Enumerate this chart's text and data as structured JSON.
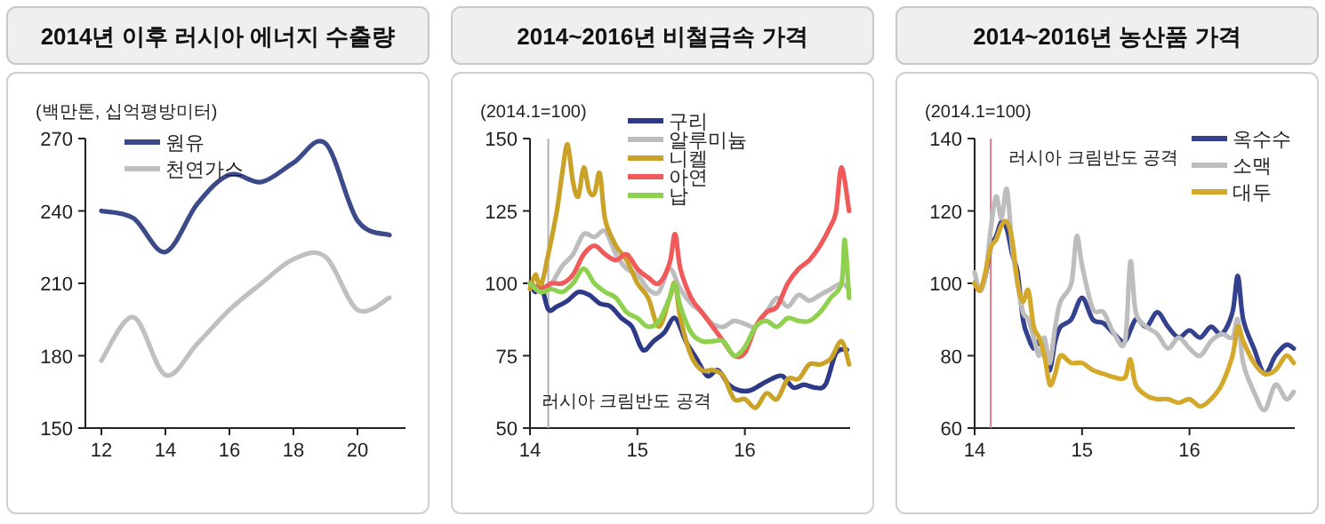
{
  "chart_data": [
    {
      "type": "line",
      "title": "2014년 이후 러시아 에너지 수출량",
      "ylabel": "(백만톤, 십억평방미터)",
      "x": [
        12,
        13,
        14,
        15,
        16,
        17,
        18,
        19,
        20,
        21
      ],
      "xlim": [
        11.5,
        21.5
      ],
      "ylim": [
        150,
        270
      ],
      "xticks": [
        12,
        14,
        16,
        18,
        20
      ],
      "yticks": [
        150,
        180,
        210,
        240,
        270
      ],
      "legend": "top left",
      "series": [
        {
          "name": "원유",
          "color": "#3d4a8a",
          "values": [
            240,
            237,
            223,
            243,
            255,
            252,
            260,
            268,
            236,
            230
          ]
        },
        {
          "name": "천연가스",
          "color": "#c0c0c0",
          "values": [
            178,
            196,
            172,
            185,
            199,
            210,
            220,
            221,
            199,
            204
          ]
        }
      ]
    },
    {
      "type": "line",
      "title": "2014~2016년 비철금속 가격",
      "ylabel": "(2014.1=100)",
      "xlim": [
        14,
        16.98
      ],
      "ylim": [
        50,
        150
      ],
      "xticks": [
        14,
        15,
        16
      ],
      "yticks": [
        50,
        75,
        100,
        125,
        150
      ],
      "legend": "top",
      "ref_lines": [
        {
          "axis": "x",
          "value": 14.17,
          "label": "러시아 크림반도 공격",
          "color": "#b0b0b0"
        }
      ],
      "series": [
        {
          "name": "구리",
          "color": "#2e3a87",
          "x": [
            14.0,
            14.05,
            14.1,
            14.17,
            14.25,
            14.35,
            14.45,
            14.55,
            14.65,
            14.75,
            14.85,
            14.95,
            15.05,
            15.15,
            15.25,
            15.35,
            15.45,
            15.55,
            15.65,
            15.75,
            15.85,
            15.95,
            16.05,
            16.15,
            16.25,
            16.35,
            16.45,
            16.55,
            16.65,
            16.75,
            16.85,
            16.95
          ],
          "values": [
            100,
            97,
            100,
            91,
            92,
            94,
            97,
            96,
            93,
            92,
            88,
            85,
            77,
            80,
            83,
            88,
            80,
            74,
            68,
            70,
            65,
            63,
            63,
            65,
            67,
            68,
            64,
            65,
            64,
            65,
            76,
            77
          ]
        },
        {
          "name": "알루미늄",
          "color": "#bdbdbd",
          "x": [
            14.0,
            14.1,
            14.2,
            14.3,
            14.4,
            14.5,
            14.6,
            14.7,
            14.8,
            14.9,
            15.0,
            15.1,
            15.2,
            15.3,
            15.4,
            15.5,
            15.6,
            15.7,
            15.8,
            15.9,
            16.0,
            16.1,
            16.2,
            16.3,
            16.4,
            16.5,
            16.6,
            16.7,
            16.8,
            16.9,
            16.97
          ],
          "values": [
            100,
            97,
            100,
            106,
            110,
            117,
            116,
            118,
            110,
            105,
            103,
            98,
            97,
            105,
            98,
            93,
            90,
            86,
            85,
            87,
            86,
            85,
            90,
            95,
            92,
            96,
            94,
            96,
            98,
            100,
            98
          ]
        },
        {
          "name": "니켈",
          "color": "#c9a227",
          "x": [
            14.0,
            14.05,
            14.1,
            14.17,
            14.25,
            14.3,
            14.35,
            14.4,
            14.45,
            14.5,
            14.55,
            14.6,
            14.65,
            14.7,
            14.8,
            14.9,
            15.0,
            15.1,
            15.2,
            15.3,
            15.35,
            15.4,
            15.5,
            15.6,
            15.7,
            15.8,
            15.9,
            16.0,
            16.1,
            16.2,
            16.3,
            16.4,
            16.5,
            16.6,
            16.7,
            16.8,
            16.9,
            16.97
          ],
          "values": [
            98,
            103,
            99,
            110,
            125,
            138,
            148,
            135,
            130,
            140,
            132,
            131,
            138,
            122,
            113,
            108,
            100,
            95,
            85,
            95,
            100,
            88,
            75,
            70,
            70,
            68,
            60,
            60,
            57,
            62,
            60,
            67,
            67,
            72,
            72,
            74,
            80,
            72
          ]
        },
        {
          "name": "아연",
          "color": "#f05a5a",
          "x": [
            14.0,
            14.1,
            14.2,
            14.3,
            14.4,
            14.5,
            14.6,
            14.7,
            14.8,
            14.9,
            15.0,
            15.1,
            15.2,
            15.3,
            15.35,
            15.4,
            15.5,
            15.6,
            15.7,
            15.8,
            15.9,
            16.0,
            16.1,
            16.2,
            16.3,
            16.4,
            16.5,
            16.6,
            16.7,
            16.8,
            16.85,
            16.9,
            16.97
          ],
          "values": [
            100,
            98,
            100,
            100,
            103,
            110,
            113,
            110,
            108,
            110,
            105,
            102,
            100,
            107,
            117,
            105,
            95,
            90,
            85,
            80,
            75,
            76,
            85,
            90,
            92,
            100,
            105,
            108,
            113,
            120,
            125,
            140,
            125
          ]
        },
        {
          "name": "납",
          "color": "#8fd14f",
          "x": [
            14.0,
            14.1,
            14.2,
            14.3,
            14.4,
            14.5,
            14.6,
            14.7,
            14.8,
            14.9,
            15.0,
            15.1,
            15.2,
            15.3,
            15.35,
            15.4,
            15.5,
            15.6,
            15.7,
            15.8,
            15.9,
            16.0,
            16.1,
            16.2,
            16.3,
            16.4,
            16.5,
            16.6,
            16.7,
            16.8,
            16.9,
            16.93,
            16.97
          ],
          "values": [
            100,
            97,
            98,
            97,
            100,
            105,
            100,
            97,
            95,
            90,
            88,
            85,
            87,
            95,
            100,
            92,
            83,
            80,
            80,
            80,
            75,
            78,
            85,
            87,
            85,
            88,
            87,
            87,
            90,
            95,
            100,
            115,
            95
          ]
        }
      ]
    },
    {
      "type": "line",
      "title": "2014~2016년 농산품 가격",
      "ylabel": "(2014.1=100)",
      "xlim": [
        14,
        16.98
      ],
      "ylim": [
        60,
        140
      ],
      "xticks": [
        14,
        15,
        16
      ],
      "yticks": [
        60,
        80,
        100,
        120,
        140
      ],
      "legend": "top right",
      "ref_lines": [
        {
          "axis": "x",
          "value": 14.15,
          "label": "러시아 크림반도 공격",
          "color": "#e07a8a"
        }
      ],
      "series": [
        {
          "name": "옥수수",
          "color": "#34418f",
          "x": [
            14.0,
            14.05,
            14.1,
            14.15,
            14.2,
            14.25,
            14.3,
            14.35,
            14.4,
            14.45,
            14.5,
            14.55,
            14.6,
            14.65,
            14.7,
            14.75,
            14.8,
            14.9,
            15.0,
            15.1,
            15.2,
            15.3,
            15.4,
            15.5,
            15.6,
            15.7,
            15.8,
            15.9,
            16.0,
            16.1,
            16.2,
            16.3,
            16.4,
            16.45,
            16.5,
            16.6,
            16.7,
            16.8,
            16.9,
            16.97
          ],
          "values": [
            100,
            98,
            102,
            110,
            113,
            117,
            115,
            108,
            103,
            90,
            85,
            82,
            84,
            80,
            76,
            84,
            88,
            90,
            96,
            90,
            89,
            86,
            84,
            90,
            88,
            92,
            88,
            85,
            87,
            85,
            88,
            86,
            92,
            102,
            90,
            82,
            75,
            80,
            83,
            82
          ]
        },
        {
          "name": "소맥",
          "color": "#bdbdbd",
          "x": [
            14.0,
            14.05,
            14.1,
            14.15,
            14.2,
            14.25,
            14.3,
            14.35,
            14.4,
            14.45,
            14.5,
            14.55,
            14.6,
            14.65,
            14.7,
            14.75,
            14.8,
            14.9,
            14.95,
            15.0,
            15.1,
            15.2,
            15.3,
            15.4,
            15.45,
            15.5,
            15.6,
            15.7,
            15.8,
            15.9,
            16.0,
            16.1,
            16.2,
            16.3,
            16.4,
            16.45,
            16.5,
            16.6,
            16.7,
            16.8,
            16.9,
            16.97
          ],
          "values": [
            103,
            98,
            102,
            115,
            124,
            118,
            126,
            110,
            100,
            92,
            90,
            85,
            80,
            85,
            78,
            88,
            95,
            100,
            113,
            105,
            93,
            92,
            86,
            84,
            106,
            92,
            88,
            86,
            82,
            85,
            82,
            80,
            84,
            86,
            85,
            90,
            78,
            70,
            65,
            72,
            68,
            70
          ]
        },
        {
          "name": "대두",
          "color": "#d4a82a",
          "x": [
            14.0,
            14.05,
            14.1,
            14.15,
            14.2,
            14.25,
            14.3,
            14.35,
            14.4,
            14.45,
            14.5,
            14.55,
            14.6,
            14.65,
            14.7,
            14.75,
            14.8,
            14.9,
            15.0,
            15.1,
            15.2,
            15.3,
            15.4,
            15.45,
            15.5,
            15.6,
            15.7,
            15.8,
            15.9,
            16.0,
            16.1,
            16.2,
            16.3,
            16.4,
            16.45,
            16.5,
            16.6,
            16.7,
            16.8,
            16.9,
            16.97
          ],
          "values": [
            100,
            98,
            103,
            110,
            112,
            116,
            117,
            112,
            100,
            95,
            98,
            88,
            85,
            80,
            72,
            75,
            80,
            78,
            78,
            76,
            75,
            74,
            74,
            79,
            72,
            69,
            68,
            68,
            67,
            68,
            66,
            68,
            72,
            80,
            88,
            84,
            78,
            75,
            76,
            80,
            78
          ]
        }
      ]
    }
  ]
}
